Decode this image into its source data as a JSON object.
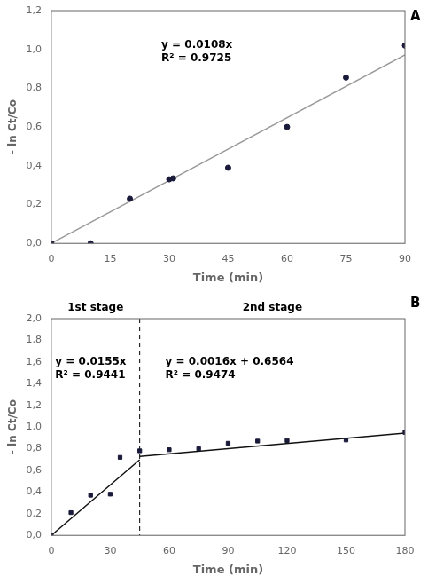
{
  "chart_data": [
    {
      "type": "scatter",
      "panel_label": "A",
      "x_label": "Time (min)",
      "y_label": "- ln Ct/Co",
      "xlim": [
        0,
        90
      ],
      "ylim": [
        0.0,
        1.2
      ],
      "xticks": [
        0,
        15,
        30,
        45,
        60,
        75,
        90
      ],
      "yticks": [
        {
          "value": 0.0,
          "label": "0,0"
        },
        {
          "value": 0.2,
          "label": "0,2"
        },
        {
          "value": 0.4,
          "label": "0,4"
        },
        {
          "value": 0.6,
          "label": "0,6"
        },
        {
          "value": 0.8,
          "label": "0,8"
        },
        {
          "value": 1.0,
          "label": "1,0"
        },
        {
          "value": 1.2,
          "label": "1,2"
        }
      ],
      "grid": false,
      "series": [
        {
          "type": "scatter",
          "color": "#1a1a3a",
          "marker": "circle",
          "x": [
            0,
            10,
            20,
            30,
            31,
            45,
            60,
            75,
            90
          ],
          "values": [
            0.0,
            0.0,
            0.23,
            0.33,
            0.335,
            0.39,
            0.6,
            0.855,
            1.02
          ]
        },
        {
          "type": "line",
          "color": "#999999",
          "x": [
            0,
            90
          ],
          "values": [
            0.0,
            0.972
          ]
        }
      ],
      "annotations": [
        {
          "text": "y = 0.0108x\nR² = 0.9725",
          "x": 28,
          "y": 1.05
        }
      ]
    },
    {
      "type": "scatter",
      "panel_label": "B",
      "x_label": "Time (min)",
      "y_label": "- ln Ct/Co",
      "xlim": [
        0,
        180
      ],
      "ylim": [
        0.0,
        2.0
      ],
      "xticks": [
        0,
        30,
        60,
        90,
        120,
        150,
        180
      ],
      "yticks": [
        {
          "value": 0.0,
          "label": "0,0"
        },
        {
          "value": 0.2,
          "label": "0,2"
        },
        {
          "value": 0.4,
          "label": "0,4"
        },
        {
          "value": 0.6,
          "label": "0,6"
        },
        {
          "value": 0.8,
          "label": "0,8"
        },
        {
          "value": 1.0,
          "label": "1,0"
        },
        {
          "value": 1.2,
          "label": "1,2"
        },
        {
          "value": 1.4,
          "label": "1,4"
        },
        {
          "value": 1.6,
          "label": "1,6"
        },
        {
          "value": 1.8,
          "label": "1,8"
        },
        {
          "value": 2.0,
          "label": "2,0"
        }
      ],
      "grid": false,
      "series": [
        {
          "type": "scatter",
          "color": "#1a1a3a",
          "marker": "square",
          "x": [
            0,
            10,
            20,
            30,
            35,
            45,
            60,
            75,
            90,
            105,
            120,
            150,
            180
          ],
          "values": [
            0.0,
            0.21,
            0.37,
            0.38,
            0.72,
            0.78,
            0.79,
            0.8,
            0.85,
            0.87,
            0.875,
            0.88,
            0.95
          ]
        },
        {
          "type": "line",
          "color": "#111111",
          "x": [
            0,
            45
          ],
          "values": [
            0.0,
            0.6975
          ]
        },
        {
          "type": "line",
          "color": "#111111",
          "x": [
            45,
            180
          ],
          "values": [
            0.7284,
            0.9444
          ]
        }
      ],
      "vline": {
        "x": 45,
        "color": "#000000",
        "line_style": "dashed"
      },
      "stage_labels": [
        "1st stage",
        "2nd stage"
      ],
      "annotations": [
        {
          "text": "y = 0.0155x\nR² = 0.9441",
          "x": 2,
          "y": 1.65
        },
        {
          "text": "y = 0.0016x + 0.6564\nR² = 0.9474",
          "x": 58,
          "y": 1.65
        }
      ]
    }
  ]
}
